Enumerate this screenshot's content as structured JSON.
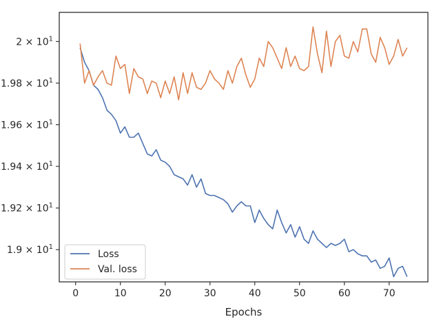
{
  "chart_data": {
    "type": "line",
    "xlabel": "Epochs",
    "ylabel": "",
    "xlim": [
      -3.65,
      78.65
    ],
    "ylim": [
      18.845,
      20.14
    ],
    "x_ticks": [
      {
        "value": 0,
        "label": "0"
      },
      {
        "value": 10,
        "label": "10"
      },
      {
        "value": 20,
        "label": "20"
      },
      {
        "value": 30,
        "label": "30"
      },
      {
        "value": 40,
        "label": "40"
      },
      {
        "value": 50,
        "label": "50"
      },
      {
        "value": 60,
        "label": "60"
      },
      {
        "value": 70,
        "label": "70"
      }
    ],
    "y_ticks": [
      {
        "value": 19.0,
        "mantissa": "1.9",
        "exp": "1"
      },
      {
        "value": 19.2,
        "mantissa": "1.92",
        "exp": "1"
      },
      {
        "value": 19.4,
        "mantissa": "1.94",
        "exp": "1"
      },
      {
        "value": 19.6,
        "mantissa": "1.96",
        "exp": "1"
      },
      {
        "value": 19.8,
        "mantissa": "1.98",
        "exp": "1"
      },
      {
        "value": 20.0,
        "mantissa": "2",
        "exp": "1"
      }
    ],
    "times_symbol": "×",
    "exp_base": "10",
    "legend_position": "lower-left",
    "grid": false,
    "x": [
      1,
      2,
      3,
      4,
      5,
      6,
      7,
      8,
      9,
      10,
      11,
      12,
      13,
      14,
      15,
      16,
      17,
      18,
      19,
      20,
      21,
      22,
      23,
      24,
      25,
      26,
      27,
      28,
      29,
      30,
      31,
      32,
      33,
      34,
      35,
      36,
      37,
      38,
      39,
      40,
      41,
      42,
      43,
      44,
      45,
      46,
      47,
      48,
      49,
      50,
      51,
      52,
      53,
      54,
      55,
      56,
      57,
      58,
      59,
      60,
      61,
      62,
      63,
      64,
      65,
      66,
      67,
      68,
      69,
      70,
      71,
      72,
      73,
      74
    ],
    "series": [
      {
        "name": "Loss",
        "color": "#4c72b0",
        "values": [
          19.97,
          19.9,
          19.86,
          19.79,
          19.77,
          19.73,
          19.67,
          19.65,
          19.62,
          19.56,
          19.59,
          19.54,
          19.54,
          19.56,
          19.51,
          19.46,
          19.45,
          19.48,
          19.43,
          19.42,
          19.4,
          19.36,
          19.35,
          19.34,
          19.31,
          19.36,
          19.3,
          19.34,
          19.27,
          19.26,
          19.26,
          19.25,
          19.24,
          19.22,
          19.18,
          19.21,
          19.23,
          19.21,
          19.21,
          19.13,
          19.19,
          19.15,
          19.12,
          19.1,
          19.19,
          19.13,
          19.08,
          19.12,
          19.06,
          19.11,
          19.05,
          19.03,
          19.09,
          19.05,
          19.03,
          19.01,
          19.03,
          19.02,
          19.03,
          19.05,
          18.99,
          19.0,
          18.98,
          18.97,
          18.97,
          18.94,
          18.95,
          18.91,
          18.92,
          18.96,
          18.87,
          18.91,
          18.92,
          18.87
        ]
      },
      {
        "name": "Val. loss",
        "color": "#dd8452",
        "values": [
          19.99,
          19.8,
          19.86,
          19.79,
          19.83,
          19.86,
          19.8,
          19.79,
          19.93,
          19.87,
          19.89,
          19.75,
          19.87,
          19.83,
          19.82,
          19.75,
          19.81,
          19.8,
          19.73,
          19.81,
          19.75,
          19.83,
          19.72,
          19.85,
          19.75,
          19.85,
          19.78,
          19.77,
          19.8,
          19.86,
          19.82,
          19.8,
          19.77,
          19.86,
          19.8,
          19.88,
          19.92,
          19.84,
          19.78,
          19.82,
          19.92,
          19.88,
          20.0,
          19.97,
          19.92,
          19.87,
          19.97,
          19.88,
          19.93,
          19.87,
          19.86,
          19.88,
          20.07,
          19.94,
          19.85,
          20.05,
          19.88,
          20.0,
          20.03,
          19.93,
          19.92,
          20.0,
          19.95,
          20.06,
          20.06,
          19.94,
          19.9,
          20.02,
          19.97,
          19.89,
          19.93,
          20.01,
          19.93,
          19.97
        ]
      }
    ]
  }
}
